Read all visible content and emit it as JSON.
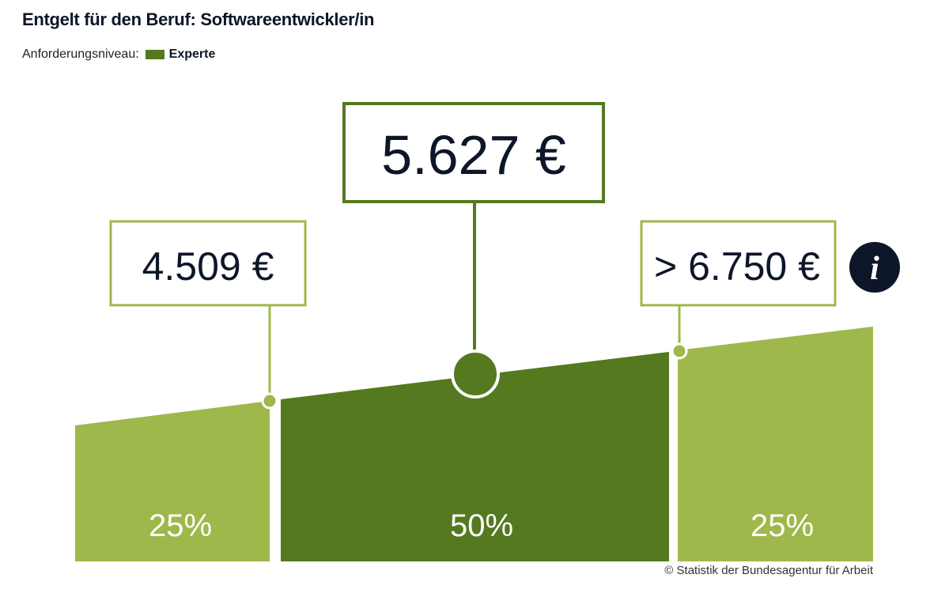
{
  "title": "Entgelt für den Beruf: Softwareentwickler/in",
  "legend": {
    "label": "Anforderungsniveau:",
    "level": "Experte",
    "color": "#54791f"
  },
  "colors": {
    "light": "#9eb84b",
    "dark": "#54791f",
    "text_dark": "#0d1629"
  },
  "chart_data": {
    "type": "bar",
    "categories": [
      "25%",
      "50%",
      "25%"
    ],
    "values_labels": [
      "4.509 €",
      "5.627 €",
      "> 6.750 €"
    ],
    "values": [
      4509,
      5627,
      6750
    ],
    "series": [
      {
        "values": [
          4509,
          5627,
          6750
        ]
      }
    ]
  },
  "info_icon": "info-icon",
  "copyright": "© Statistik der Bundesagentur für Arbeit"
}
